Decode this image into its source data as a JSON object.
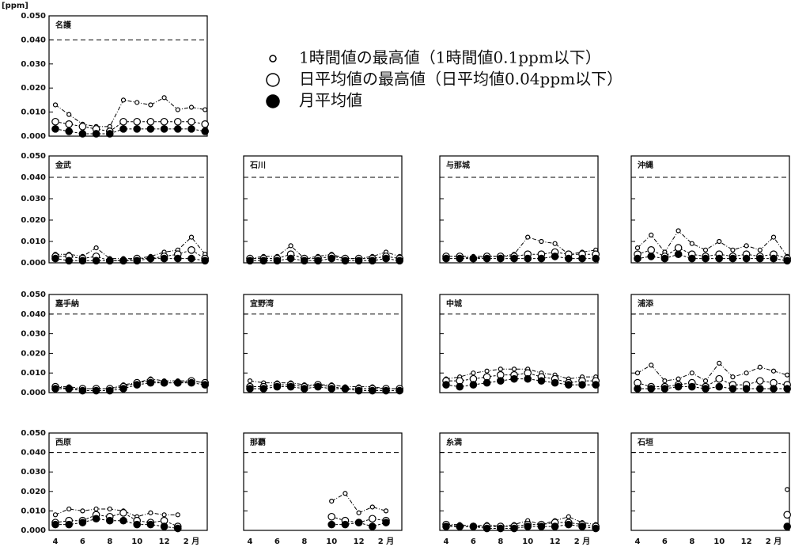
{
  "chart_data": {
    "type": "line",
    "unit": "[ppm]",
    "legend": [
      "1時間値の最高値（1時間値0.1ppm以下）",
      "日平均値の最高値（日平均値0.04ppm以下）",
      "月平均値"
    ],
    "categories": [
      "4",
      null,
      "6",
      null,
      "8",
      null,
      "10",
      null,
      "12",
      null,
      "2 月",
      null
    ],
    "ylim": [
      0,
      0.05
    ],
    "yticks": [
      {
        "value": 0,
        "label": "0.000"
      },
      {
        "value": 0.01,
        "label": "0.010"
      },
      {
        "value": 0.02,
        "label": "0.020"
      },
      {
        "value": 0.03,
        "label": "0.030"
      },
      {
        "value": 0.04,
        "label": "0.040"
      },
      {
        "value": 0.05,
        "label": "0.050"
      }
    ],
    "reference": 0.04,
    "panels": [
      {
        "title": "名護",
        "series": [
          {
            "values": [
              0.013,
              0.009,
              0.005,
              0.004,
              0.004,
              0.015,
              0.014,
              0.013,
              0.016,
              0.011,
              0.012,
              0.011
            ]
          },
          {
            "values": [
              0.006,
              0.005,
              0.004,
              0.003,
              0.002,
              0.006,
              0.006,
              0.006,
              0.006,
              0.006,
              0.006,
              0.005
            ]
          },
          {
            "values": [
              0.003,
              0.002,
              0.001,
              0.001,
              0.001,
              0.003,
              0.003,
              0.003,
              0.003,
              0.003,
              0.003,
              0.002
            ]
          }
        ]
      },
      {
        "title": "金武",
        "series": [
          {
            "values": [
              0.004,
              0.004,
              0.003,
              0.007,
              0.002,
              0.002,
              0.002,
              0.003,
              0.005,
              0.006,
              0.012,
              0.004
            ]
          },
          {
            "values": [
              0.003,
              0.003,
              0.002,
              0.003,
              0.001,
              0.001,
              0.002,
              0.002,
              0.003,
              0.004,
              0.006,
              0.002
            ]
          },
          {
            "values": [
              0.002,
              0.001,
              0.001,
              0.001,
              0.001,
              0.001,
              0.001,
              0.002,
              0.002,
              0.002,
              0.002,
              0.001
            ]
          }
        ]
      },
      {
        "title": "石川",
        "series": [
          {
            "values": [
              0.002,
              0.003,
              0.003,
              0.008,
              0.002,
              0.003,
              0.004,
              0.002,
              0.002,
              0.003,
              0.005,
              0.003
            ]
          },
          {
            "values": [
              0.002,
              0.002,
              0.002,
              0.004,
              0.002,
              0.002,
              0.003,
              0.002,
              0.002,
              0.002,
              0.003,
              0.002
            ]
          },
          {
            "values": [
              0.001,
              0.001,
              0.001,
              0.002,
              0.001,
              0.001,
              0.002,
              0.001,
              0.001,
              0.001,
              0.002,
              0.001
            ]
          }
        ]
      },
      {
        "title": "与那城",
        "series": [
          {
            "values": [
              0.003,
              0.003,
              0.003,
              0.003,
              0.003,
              0.004,
              0.012,
              0.01,
              0.009,
              0.004,
              0.005,
              0.006
            ]
          },
          {
            "values": [
              0.003,
              0.003,
              0.002,
              0.003,
              0.003,
              0.003,
              0.004,
              0.004,
              0.005,
              0.004,
              0.004,
              0.004
            ]
          },
          {
            "values": [
              0.002,
              0.002,
              0.002,
              0.002,
              0.002,
              0.002,
              0.002,
              0.002,
              0.003,
              0.002,
              0.002,
              0.002
            ]
          }
        ]
      },
      {
        "title": "沖縄",
        "series": [
          {
            "values": [
              0.007,
              0.013,
              0.005,
              0.015,
              0.009,
              0.006,
              0.01,
              0.006,
              0.008,
              0.006,
              0.012,
              0.003
            ]
          },
          {
            "values": [
              0.004,
              0.006,
              0.003,
              0.007,
              0.004,
              0.003,
              0.004,
              0.003,
              0.004,
              0.003,
              0.004,
              0.002
            ]
          },
          {
            "values": [
              0.002,
              0.003,
              0.002,
              0.004,
              0.002,
              0.002,
              0.002,
              0.002,
              0.002,
              0.002,
              0.002,
              0.001
            ]
          }
        ]
      },
      {
        "title": "嘉手納",
        "series": [
          {
            "values": [
              0.003,
              0.003,
              0.002,
              0.002,
              0.002,
              0.004,
              0.005,
              0.007,
              0.006,
              0.006,
              0.006,
              0.005
            ]
          },
          {
            "values": [
              0.003,
              0.002,
              0.002,
              0.002,
              0.002,
              0.003,
              0.005,
              0.006,
              0.005,
              0.005,
              0.006,
              0.005
            ]
          },
          {
            "values": [
              0.002,
              0.002,
              0.001,
              0.001,
              0.001,
              0.002,
              0.004,
              0.005,
              0.005,
              0.005,
              0.005,
              0.004
            ]
          }
        ]
      },
      {
        "title": "宜野湾",
        "series": [
          {
            "values": [
              0.006,
              0.005,
              0.005,
              0.005,
              0.004,
              0.004,
              0.004,
              0.003,
              0.003,
              0.003,
              0.002,
              0.002
            ]
          },
          {
            "values": [
              0.003,
              0.003,
              0.004,
              0.004,
              0.003,
              0.004,
              0.003,
              0.002,
              0.002,
              0.002,
              0.002,
              0.002
            ]
          },
          {
            "values": [
              0.002,
              0.002,
              0.003,
              0.003,
              0.002,
              0.003,
              0.002,
              0.002,
              0.001,
              0.001,
              0.001,
              0.001
            ]
          }
        ]
      },
      {
        "title": "中城",
        "series": [
          {
            "values": [
              0.007,
              0.008,
              0.01,
              0.011,
              0.012,
              0.012,
              0.012,
              0.01,
              0.009,
              0.007,
              0.008,
              0.008
            ]
          },
          {
            "values": [
              0.006,
              0.006,
              0.007,
              0.008,
              0.009,
              0.009,
              0.01,
              0.008,
              0.007,
              0.005,
              0.006,
              0.006
            ]
          },
          {
            "values": [
              0.004,
              0.003,
              0.004,
              0.005,
              0.006,
              0.007,
              0.007,
              0.006,
              0.005,
              0.004,
              0.004,
              0.004
            ]
          }
        ]
      },
      {
        "title": "浦添",
        "series": [
          {
            "values": [
              0.01,
              0.014,
              0.006,
              0.007,
              0.01,
              0.006,
              0.015,
              0.008,
              0.01,
              0.013,
              0.011,
              0.009
            ]
          },
          {
            "values": [
              0.005,
              0.003,
              0.003,
              0.004,
              0.005,
              0.003,
              0.007,
              0.004,
              0.004,
              0.006,
              0.005,
              0.004
            ]
          },
          {
            "values": [
              0.002,
              0.002,
              0.002,
              0.003,
              0.003,
              0.002,
              0.003,
              0.002,
              0.002,
              0.002,
              0.002,
              0.002
            ]
          }
        ]
      },
      {
        "title": "西原",
        "series": [
          {
            "values": [
              0.008,
              0.011,
              0.01,
              0.011,
              0.011,
              0.01,
              0.007,
              0.009,
              0.008,
              0.008,
              null,
              null
            ]
          },
          {
            "values": [
              0.004,
              0.005,
              0.005,
              0.008,
              0.007,
              0.009,
              0.005,
              0.004,
              0.005,
              0.002,
              null,
              null
            ]
          },
          {
            "values": [
              0.003,
              0.003,
              0.004,
              0.006,
              0.005,
              0.005,
              0.003,
              0.003,
              0.002,
              0.001,
              null,
              null
            ]
          }
        ]
      },
      {
        "title": "那覇",
        "series": [
          {
            "values": [
              null,
              null,
              null,
              null,
              null,
              null,
              0.015,
              0.019,
              0.009,
              0.012,
              0.01,
              null
            ]
          },
          {
            "values": [
              null,
              null,
              null,
              null,
              null,
              null,
              0.007,
              0.005,
              0.004,
              0.006,
              0.005,
              null
            ]
          },
          {
            "values": [
              null,
              null,
              null,
              null,
              null,
              null,
              0.003,
              0.003,
              0.004,
              0.002,
              0.004,
              null
            ]
          }
        ]
      },
      {
        "title": "糸満",
        "series": [
          {
            "values": [
              0.003,
              0.003,
              0.002,
              0.003,
              0.002,
              0.003,
              0.005,
              0.003,
              0.005,
              0.007,
              0.004,
              0.003
            ]
          },
          {
            "values": [
              0.003,
              0.002,
              0.002,
              0.002,
              0.002,
              0.002,
              0.003,
              0.003,
              0.004,
              0.004,
              0.003,
              0.002
            ]
          },
          {
            "values": [
              0.002,
              0.002,
              0.002,
              0.001,
              0.001,
              0.001,
              0.002,
              0.002,
              0.002,
              0.003,
              0.002,
              0.001
            ]
          }
        ]
      },
      {
        "title": "石垣",
        "series": [
          {
            "values": [
              null,
              null,
              null,
              null,
              null,
              null,
              null,
              null,
              null,
              null,
              null,
              0.021
            ]
          },
          {
            "values": [
              null,
              null,
              null,
              null,
              null,
              null,
              null,
              null,
              null,
              null,
              null,
              0.008
            ]
          },
          {
            "values": [
              null,
              null,
              null,
              null,
              null,
              null,
              null,
              null,
              null,
              null,
              null,
              0.002
            ]
          }
        ]
      }
    ]
  }
}
